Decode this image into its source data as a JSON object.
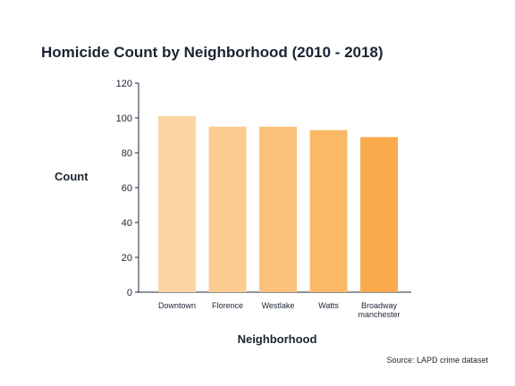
{
  "chart_data": {
    "type": "bar",
    "title": "Homicide Count by Neighborhood (2010 - 2018)",
    "xlabel": "Neighborhood",
    "ylabel": "Count",
    "categories": [
      "Downtown",
      "Florence",
      "Westlake",
      "Watts",
      "Broadway manchester"
    ],
    "values": [
      101,
      95,
      95,
      93,
      89
    ],
    "ylim": [
      0,
      120
    ],
    "yticks": [
      0,
      20,
      40,
      60,
      80,
      100,
      120
    ],
    "grid": false,
    "colors": [
      "#fcd5a3",
      "#fccb8f",
      "#fcc27c",
      "#fbb968",
      "#fbaa4c"
    ]
  },
  "source": "Source: LAPD crime dataset"
}
